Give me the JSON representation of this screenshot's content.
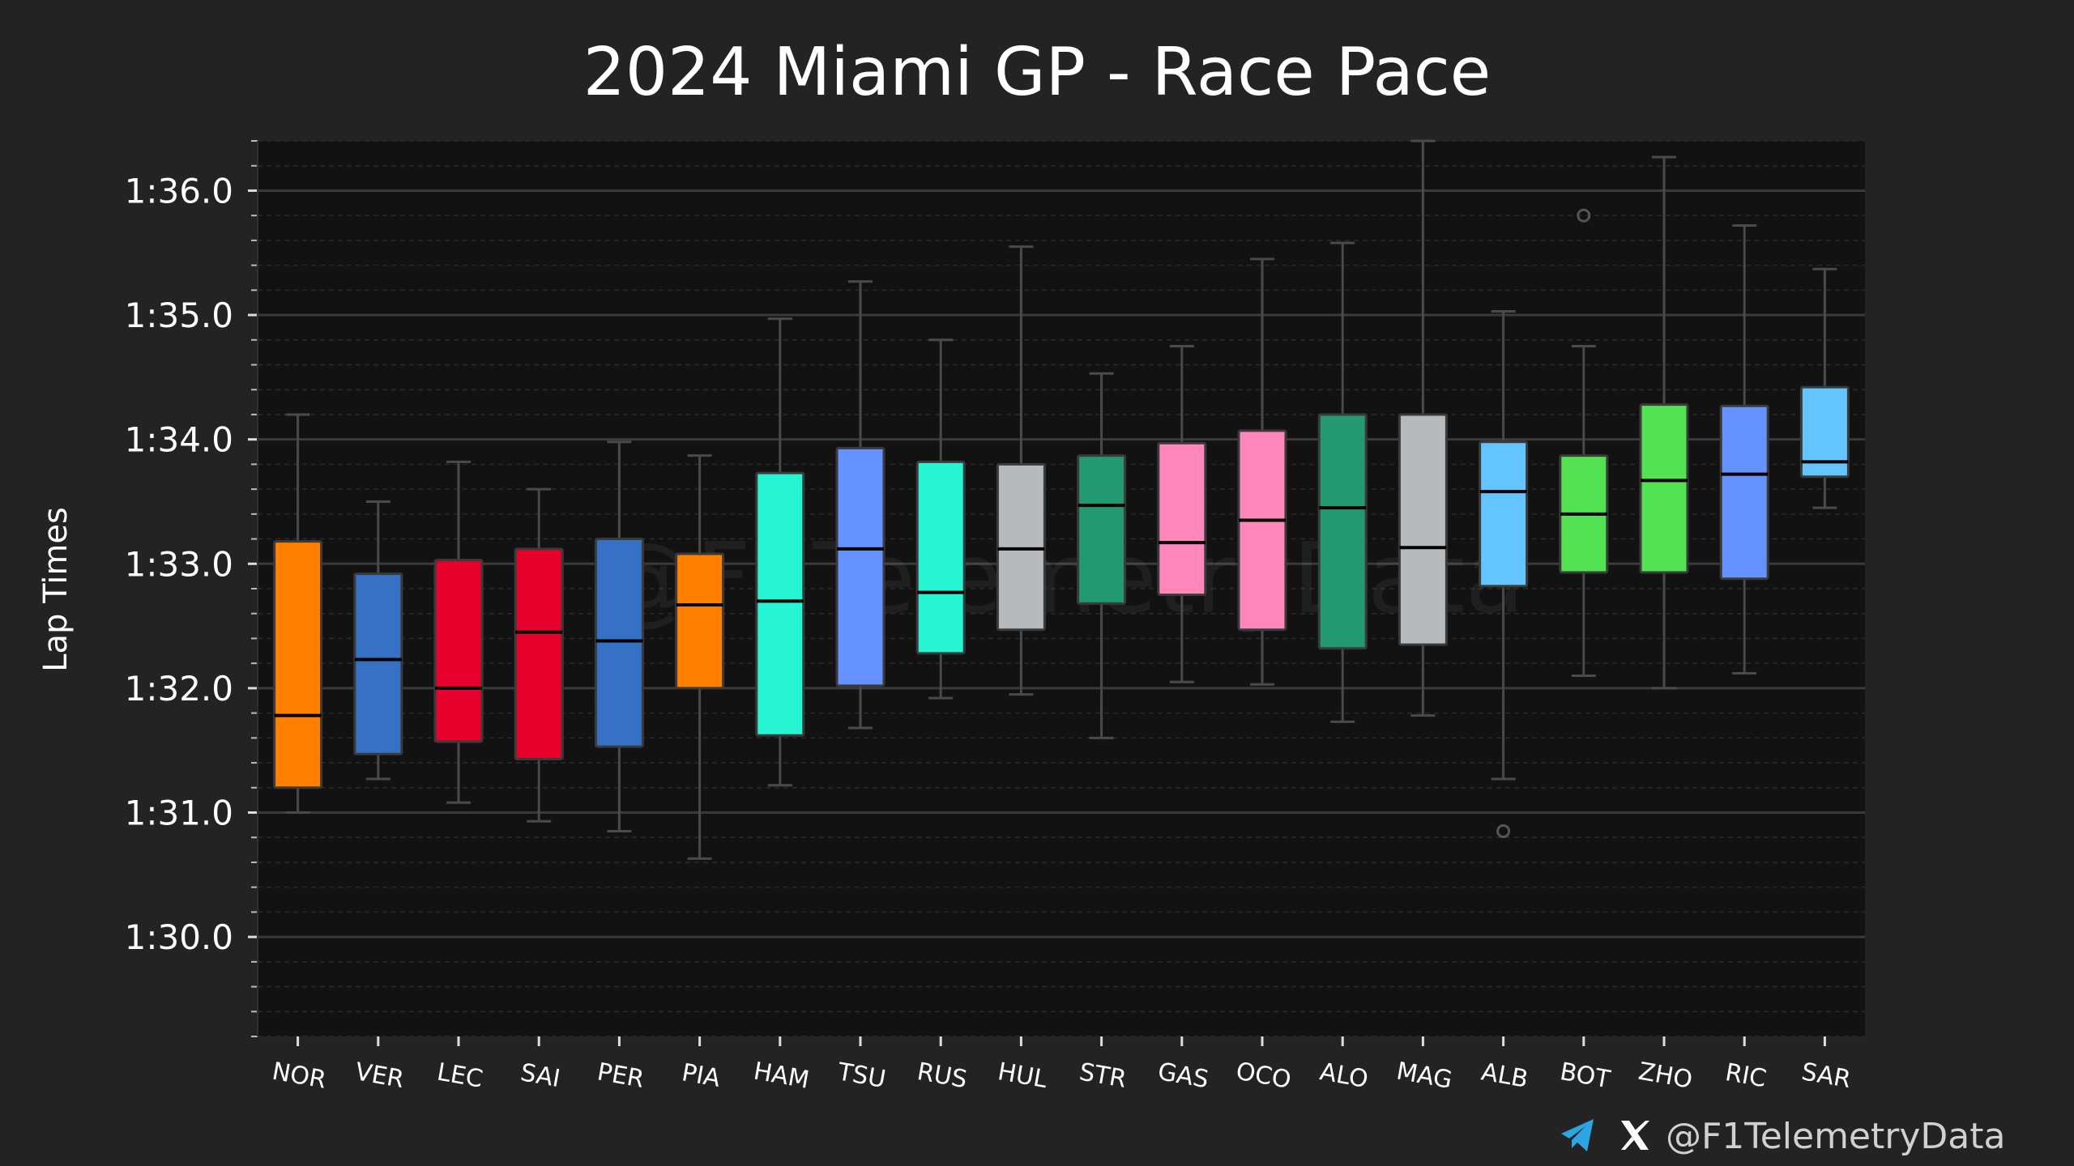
{
  "title": "2024 Miami GP - Race Pace",
  "watermark": "@F1TelemetryData",
  "footer": {
    "handle": "@F1TelemetryData",
    "icons": [
      "telegram-icon",
      "x-icon"
    ],
    "telegram_color": "#2ca5e0"
  },
  "colors": {
    "background": "#232323",
    "plot_background": "#121212",
    "grid_major": "#3a3a3a",
    "grid_minor": "#2a2a2a",
    "whisker": "#4a4a4a",
    "median": "#000000"
  },
  "chart_data": {
    "type": "box",
    "title": "2024 Miami GP - Race Pace",
    "xlabel": "",
    "ylabel": "Lap Times",
    "y_unit": "seconds",
    "ylim": [
      89.2,
      96.4
    ],
    "yticks": [
      90,
      91,
      92,
      93,
      94,
      95,
      96
    ],
    "ytick_labels": [
      "1:30.0",
      "1:31.0",
      "1:32.0",
      "1:33.0",
      "1:34.0",
      "1:35.0",
      "1:36.0"
    ],
    "grid": true,
    "series": [
      {
        "driver": "NOR",
        "color": "#ff8000",
        "whislo": 91.0,
        "q1": 91.2,
        "median": 91.78,
        "q3": 93.18,
        "whishi": 94.2,
        "fliers": []
      },
      {
        "driver": "VER",
        "color": "#3671c6",
        "whislo": 91.27,
        "q1": 91.47,
        "median": 92.23,
        "q3": 92.92,
        "whishi": 93.5,
        "fliers": []
      },
      {
        "driver": "LEC",
        "color": "#e8002d",
        "whislo": 91.08,
        "q1": 91.57,
        "median": 92.0,
        "q3": 93.03,
        "whishi": 93.82,
        "fliers": []
      },
      {
        "driver": "SAI",
        "color": "#e8002d",
        "whislo": 90.93,
        "q1": 91.43,
        "median": 92.45,
        "q3": 93.12,
        "whishi": 93.6,
        "fliers": []
      },
      {
        "driver": "PER",
        "color": "#3671c6",
        "whislo": 90.85,
        "q1": 91.53,
        "median": 92.38,
        "q3": 93.2,
        "whishi": 93.98,
        "fliers": []
      },
      {
        "driver": "PIA",
        "color": "#ff8000",
        "whislo": 90.63,
        "q1": 92.0,
        "median": 92.67,
        "q3": 93.08,
        "whishi": 93.87,
        "fliers": []
      },
      {
        "driver": "HAM",
        "color": "#27f4d2",
        "whislo": 91.22,
        "q1": 91.62,
        "median": 92.7,
        "q3": 93.73,
        "whishi": 94.97,
        "fliers": []
      },
      {
        "driver": "TSU",
        "color": "#6692ff",
        "whislo": 91.68,
        "q1": 92.02,
        "median": 93.12,
        "q3": 93.93,
        "whishi": 95.27,
        "fliers": []
      },
      {
        "driver": "RUS",
        "color": "#27f4d2",
        "whislo": 91.92,
        "q1": 92.28,
        "median": 92.77,
        "q3": 93.82,
        "whishi": 94.8,
        "fliers": []
      },
      {
        "driver": "HUL",
        "color": "#b6babd",
        "whislo": 91.95,
        "q1": 92.47,
        "median": 93.12,
        "q3": 93.8,
        "whishi": 95.55,
        "fliers": []
      },
      {
        "driver": "STR",
        "color": "#229971",
        "whislo": 91.6,
        "q1": 92.68,
        "median": 93.47,
        "q3": 93.87,
        "whishi": 94.53,
        "fliers": []
      },
      {
        "driver": "GAS",
        "color": "#ff87bc",
        "whislo": 92.05,
        "q1": 92.75,
        "median": 93.17,
        "q3": 93.97,
        "whishi": 94.75,
        "fliers": []
      },
      {
        "driver": "OCO",
        "color": "#ff87bc",
        "whislo": 92.03,
        "q1": 92.47,
        "median": 93.35,
        "q3": 94.07,
        "whishi": 95.45,
        "fliers": []
      },
      {
        "driver": "ALO",
        "color": "#229971",
        "whislo": 91.73,
        "q1": 92.32,
        "median": 93.45,
        "q3": 94.2,
        "whishi": 95.58,
        "fliers": []
      },
      {
        "driver": "MAG",
        "color": "#b6babd",
        "whislo": 91.78,
        "q1": 92.35,
        "median": 93.13,
        "q3": 94.2,
        "whishi": 96.4,
        "fliers": []
      },
      {
        "driver": "ALB",
        "color": "#64c4ff",
        "whislo": 91.27,
        "q1": 92.82,
        "median": 93.58,
        "q3": 93.98,
        "whishi": 95.03,
        "fliers": [
          90.85
        ]
      },
      {
        "driver": "BOT",
        "color": "#52e252",
        "whislo": 92.1,
        "q1": 92.93,
        "median": 93.4,
        "q3": 93.87,
        "whishi": 94.75,
        "fliers": [
          95.8
        ]
      },
      {
        "driver": "ZHO",
        "color": "#52e252",
        "whislo": 92.0,
        "q1": 92.93,
        "median": 93.67,
        "q3": 94.28,
        "whishi": 96.27,
        "fliers": []
      },
      {
        "driver": "RIC",
        "color": "#6692ff",
        "whislo": 92.12,
        "q1": 92.88,
        "median": 93.72,
        "q3": 94.27,
        "whishi": 95.72,
        "fliers": []
      },
      {
        "driver": "SAR",
        "color": "#64c4ff",
        "whislo": 93.45,
        "q1": 93.7,
        "median": 93.82,
        "q3": 94.42,
        "whishi": 95.37,
        "fliers": []
      }
    ]
  }
}
